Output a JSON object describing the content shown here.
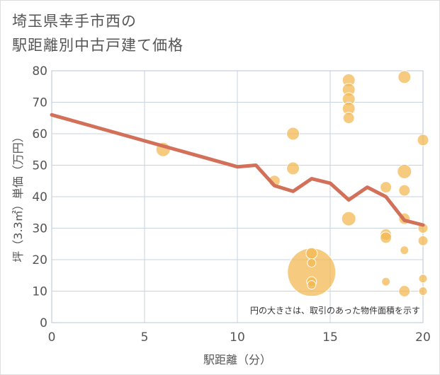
{
  "title_line1": "埼玉県幸手市西の",
  "title_line2": "駅距離別中古戸建て価格",
  "colors": {
    "bubble": "#f3b74f",
    "bubble_stroke": "#ffffff",
    "line": "#d2705a",
    "grid": "#c7d3df",
    "plot_border": "#b8c6d4",
    "text": "#555555"
  },
  "chart_data": {
    "type": "scatter",
    "xlabel": "駅距離（分）",
    "ylabel": "坪（3.3㎡）単価（万円）",
    "xlim": [
      0,
      20
    ],
    "ylim": [
      0,
      80
    ],
    "xticks": [
      "0",
      "5",
      "10",
      "15",
      "20"
    ],
    "yticks": [
      "0",
      "10",
      "20",
      "30",
      "40",
      "50",
      "60",
      "70",
      "80"
    ],
    "grid": true,
    "note": "円の大きさは、取引のあった物件面積を示す",
    "bubbles": [
      {
        "x": 6,
        "y": 55,
        "r": 10
      },
      {
        "x": 12,
        "y": 45,
        "r": 8
      },
      {
        "x": 13,
        "y": 60,
        "r": 9
      },
      {
        "x": 13,
        "y": 49,
        "r": 9
      },
      {
        "x": 14,
        "y": 16,
        "r": 34
      },
      {
        "x": 14,
        "y": 22,
        "r": 8
      },
      {
        "x": 14,
        "y": 19,
        "r": 6
      },
      {
        "x": 14,
        "y": 13,
        "r": 7
      },
      {
        "x": 14,
        "y": 12,
        "r": 6
      },
      {
        "x": 16,
        "y": 77,
        "r": 9
      },
      {
        "x": 16,
        "y": 74,
        "r": 9
      },
      {
        "x": 16,
        "y": 71,
        "r": 9
      },
      {
        "x": 16,
        "y": 68,
        "r": 9
      },
      {
        "x": 16,
        "y": 65,
        "r": 8
      },
      {
        "x": 16,
        "y": 33,
        "r": 10
      },
      {
        "x": 18,
        "y": 43,
        "r": 8
      },
      {
        "x": 18,
        "y": 28,
        "r": 8
      },
      {
        "x": 18,
        "y": 27,
        "r": 8
      },
      {
        "x": 18,
        "y": 13,
        "r": 6
      },
      {
        "x": 19,
        "y": 78,
        "r": 9
      },
      {
        "x": 19,
        "y": 48,
        "r": 10
      },
      {
        "x": 19,
        "y": 42,
        "r": 8
      },
      {
        "x": 19,
        "y": 33,
        "r": 8
      },
      {
        "x": 19,
        "y": 23,
        "r": 6
      },
      {
        "x": 19,
        "y": 10,
        "r": 8
      },
      {
        "x": 20,
        "y": 58,
        "r": 8
      },
      {
        "x": 20,
        "y": 30,
        "r": 7
      },
      {
        "x": 20,
        "y": 26,
        "r": 7
      },
      {
        "x": 20,
        "y": 14,
        "r": 6
      },
      {
        "x": 20,
        "y": 10,
        "r": 6
      }
    ],
    "trend": {
      "x": [
        0,
        10,
        11,
        12,
        13,
        14,
        15,
        16,
        17,
        18,
        19,
        20
      ],
      "y": [
        66,
        49.5,
        50,
        43.5,
        41.7,
        45.7,
        44.3,
        39,
        43,
        40,
        32.5,
        31
      ]
    }
  }
}
